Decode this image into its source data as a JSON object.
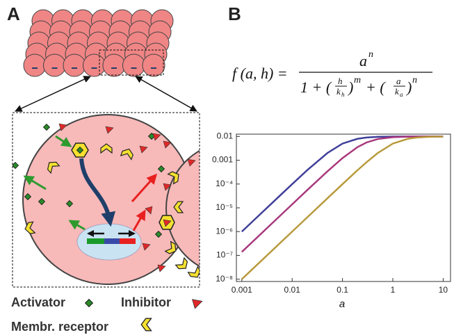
{
  "panels": {
    "a": {
      "label": "A",
      "legend": {
        "activator": "Activator",
        "inhibitor": "Inhibitor",
        "receptor": "Membr. receptor"
      }
    },
    "b": {
      "label": "B",
      "formula": {
        "lhs": "f (a, h) =",
        "num": "a",
        "num_exp": "n",
        "den_1": "1 + (",
        "frac1_num": "h",
        "frac1_den": "k",
        "frac1_sub": "h",
        "den_2": ")",
        "exp_m": "m",
        "den_3": "+ (",
        "frac2_num": "a",
        "frac2_den": "k",
        "frac2_sub": "a",
        "den_4": ")",
        "exp_n": "n"
      }
    }
  },
  "chart_data": {
    "type": "line",
    "xlabel": "a",
    "xscale": "log",
    "yscale": "log",
    "xlim": [
      0.00078,
      14
    ],
    "ylim": [
      8e-09,
      0.0125
    ],
    "xticks": [
      0.001,
      0.01,
      0.1,
      1,
      10
    ],
    "yticks": [
      {
        "value": 1e-08,
        "label": "10⁻⁸"
      },
      {
        "value": 1e-07,
        "label": "10⁻⁷"
      },
      {
        "value": 1e-06,
        "label": "10⁻⁶"
      },
      {
        "value": 1e-05,
        "label": "10⁻⁵"
      },
      {
        "value": 0.0001,
        "label": "10⁻⁴"
      },
      0.001,
      0.01
    ],
    "x": [
      0.001,
      0.002,
      0.005,
      0.01,
      0.02,
      0.05,
      0.1,
      0.2,
      0.3,
      0.5,
      1,
      2,
      3,
      5,
      10
    ],
    "series": [
      {
        "color": "#3f3f9a",
        "values": [
          1e-06,
          4e-06,
          2.49e-05,
          9.9e-05,
          0.000385,
          0.002,
          0.005,
          0.008,
          0.009,
          0.00962,
          0.0099,
          0.00998,
          0.00999,
          0.01,
          0.01
        ]
      },
      {
        "color": "#a8387c",
        "values": [
          1.4e-07,
          5.6e-07,
          3.5e-06,
          1.4e-05,
          5.57e-05,
          0.000338,
          0.00123,
          0.00359,
          0.00558,
          0.00778,
          0.00933,
          0.00982,
          0.00992,
          0.00997,
          0.00999
        ]
      },
      {
        "color": "#b89a3c",
        "values": [
          1e-08,
          4e-08,
          2.5e-07,
          1e-06,
          4e-06,
          2.49e-05,
          9.9e-05,
          0.000385,
          0.000826,
          0.002,
          0.005,
          0.008,
          0.009,
          0.00962,
          0.0099
        ]
      }
    ]
  }
}
